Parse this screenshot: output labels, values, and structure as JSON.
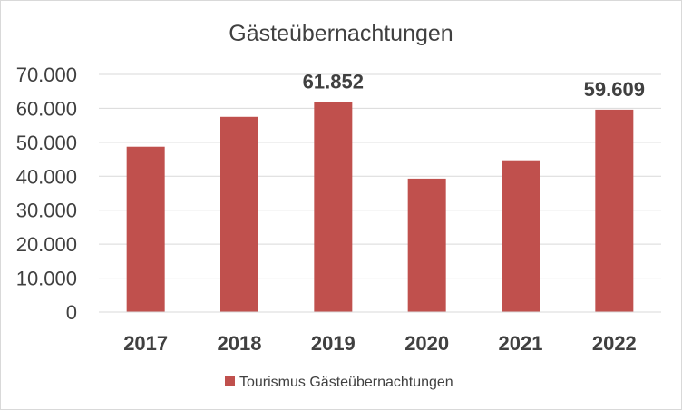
{
  "chart_data": {
    "type": "bar",
    "title": "Gästeübernachtungen",
    "categories": [
      "2017",
      "2018",
      "2019",
      "2020",
      "2021",
      "2022"
    ],
    "series": [
      {
        "name": "Tourismus Gästeübernachtungen",
        "values": [
          48700,
          57500,
          61852,
          39300,
          44700,
          59609
        ],
        "color": "#c0504d"
      }
    ],
    "data_labels": [
      "",
      "",
      "61.852",
      "",
      "",
      "59.609"
    ],
    "ylim": [
      0,
      70000
    ],
    "yticks": [
      0,
      10000,
      20000,
      30000,
      40000,
      50000,
      60000,
      70000
    ],
    "ytick_labels": [
      "0",
      "10.000",
      "20.000",
      "30.000",
      "40.000",
      "50.000",
      "60.000",
      "70.000"
    ],
    "xlabel": "",
    "ylabel": "",
    "grid": true,
    "legend_position": "bottom"
  }
}
